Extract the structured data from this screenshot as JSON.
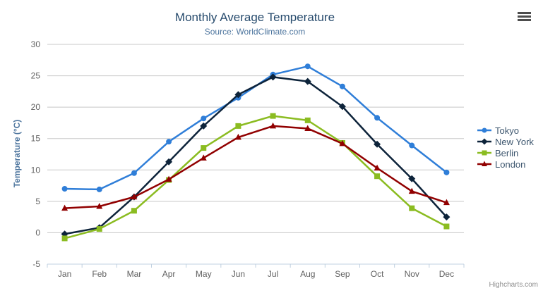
{
  "chart": {
    "title": "Monthly Average Temperature",
    "subtitle": "Source: WorldClimate.com",
    "y_axis_title": "Temperature (°C)",
    "credits": "Highcharts.com"
  },
  "colors": {
    "title": "#274b6d",
    "subtitle": "#4d759e",
    "axis_title": "#4d759e",
    "axis_labels": "#606060",
    "grid_line": "#c8c8c8",
    "axis_line": "#c0d0e0",
    "legend_text": "#3e576f",
    "credits": "#909090",
    "export_icon": "#4d4d4d",
    "background": "#ffffff"
  },
  "icons": {
    "export": "hamburger-menu-icon"
  },
  "chart_data": {
    "type": "line",
    "title": "Monthly Average Temperature",
    "subtitle": "Source: WorldClimate.com",
    "xlabel": "",
    "ylabel": "Temperature (°C)",
    "ylim": [
      -5,
      30
    ],
    "y_tick_interval": 5,
    "y_ticks": [
      30,
      25,
      20,
      15,
      10,
      5,
      0,
      -5
    ],
    "grid": true,
    "legend_position": "right",
    "categories": [
      "Jan",
      "Feb",
      "Mar",
      "Apr",
      "May",
      "Jun",
      "Jul",
      "Aug",
      "Sep",
      "Oct",
      "Nov",
      "Dec"
    ],
    "series": [
      {
        "name": "Tokyo",
        "color": "#2f7ed8",
        "marker": "circle",
        "values": [
          7.0,
          6.9,
          9.5,
          14.5,
          18.2,
          21.5,
          25.2,
          26.5,
          23.3,
          18.3,
          13.9,
          9.6
        ]
      },
      {
        "name": "New York",
        "color": "#0d233a",
        "marker": "diamond",
        "values": [
          -0.2,
          0.8,
          5.7,
          11.3,
          17.0,
          22.0,
          24.8,
          24.1,
          20.1,
          14.1,
          8.6,
          2.5
        ]
      },
      {
        "name": "Berlin",
        "color": "#8bbc21",
        "marker": "square",
        "values": [
          -0.9,
          0.6,
          3.5,
          8.4,
          13.5,
          17.0,
          18.6,
          17.9,
          14.3,
          9.0,
          3.9,
          1.0
        ]
      },
      {
        "name": "London",
        "color": "#910000",
        "marker": "triangle",
        "values": [
          3.9,
          4.2,
          5.7,
          8.5,
          11.9,
          15.2,
          17.0,
          16.6,
          14.2,
          10.3,
          6.6,
          4.8
        ]
      }
    ]
  }
}
